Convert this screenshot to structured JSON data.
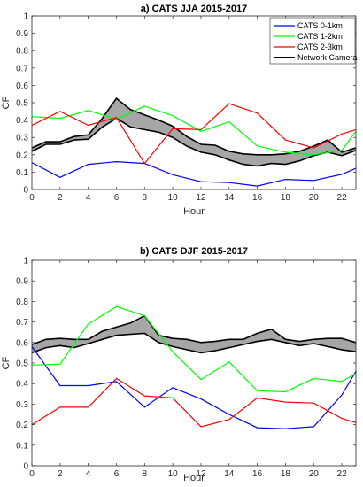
{
  "chart_data": [
    {
      "type": "line",
      "title": "a) CATS JJA 2015-2017",
      "xlabel": "Hour",
      "ylabel": "CF",
      "xlim": [
        0,
        23
      ],
      "ylim": [
        0,
        1
      ],
      "xticks": [
        0,
        2,
        4,
        6,
        8,
        10,
        12,
        14,
        16,
        18,
        20,
        22
      ],
      "yticks": [
        0,
        0.1,
        0.2,
        0.3,
        0.4,
        0.5,
        0.6,
        0.7,
        0.8,
        0.9,
        1
      ],
      "xtick_labels": [
        "0",
        "2",
        "4",
        "6",
        "8",
        "10",
        "12",
        "14",
        "16",
        "18",
        "20",
        "22"
      ],
      "ytick_labels": [
        "0",
        "0.1",
        "0.2",
        "0.3",
        "0.4",
        "0.5",
        "0.6",
        "0.7",
        "0.8",
        "0.9",
        "1"
      ],
      "legend": "top-right",
      "x": [
        0,
        1,
        2,
        3,
        4,
        5,
        6,
        7,
        8,
        9,
        10,
        11,
        12,
        13,
        14,
        15,
        16,
        17,
        18,
        19,
        20,
        21,
        22,
        23
      ],
      "series": [
        {
          "name": "CATS 0-1km",
          "color": "#0000ff",
          "x": [
            0,
            2,
            4,
            6,
            8,
            10,
            12,
            14,
            16,
            18,
            20,
            22,
            23
          ],
          "values": [
            0.155,
            0.07,
            0.145,
            0.16,
            0.15,
            0.085,
            0.045,
            0.04,
            0.02,
            0.058,
            0.052,
            0.087,
            0.122
          ]
        },
        {
          "name": "CATS 1-2km",
          "color": "#00ff00",
          "x": [
            0,
            2,
            4,
            6,
            8,
            10,
            12,
            14,
            16,
            18,
            20,
            22,
            23
          ],
          "values": [
            0.42,
            0.41,
            0.455,
            0.405,
            0.48,
            0.425,
            0.335,
            0.39,
            0.25,
            0.215,
            0.2,
            0.225,
            0.335
          ]
        },
        {
          "name": "CATS 2-3km",
          "color": "#ff0000",
          "x": [
            0,
            2,
            4,
            6,
            8,
            10,
            12,
            14,
            16,
            18,
            20,
            22,
            23
          ],
          "values": [
            0.37,
            0.45,
            0.37,
            0.415,
            0.15,
            0.35,
            0.345,
            0.495,
            0.44,
            0.285,
            0.24,
            0.32,
            0.345
          ]
        }
      ],
      "band": {
        "name": "Network Camera",
        "color": "#000000",
        "fill": "#a6a6a6",
        "upper": [
          0.24,
          0.275,
          0.275,
          0.305,
          0.315,
          0.41,
          0.525,
          0.46,
          0.43,
          0.4,
          0.365,
          0.305,
          0.26,
          0.255,
          0.22,
          0.205,
          0.2,
          0.2,
          0.205,
          0.22,
          0.25,
          0.285,
          0.215,
          0.24
        ],
        "lower": [
          0.22,
          0.26,
          0.26,
          0.285,
          0.29,
          0.36,
          0.41,
          0.36,
          0.345,
          0.33,
          0.3,
          0.25,
          0.215,
          0.2,
          0.17,
          0.145,
          0.135,
          0.15,
          0.145,
          0.165,
          0.195,
          0.215,
          0.195,
          0.225
        ]
      }
    },
    {
      "type": "line",
      "title": "b) CATS DJF 2015-2017",
      "xlabel": "Hour",
      "ylabel": "CF",
      "xlim": [
        0,
        23
      ],
      "ylim": [
        0,
        1
      ],
      "xticks": [
        0,
        2,
        4,
        6,
        8,
        10,
        12,
        14,
        16,
        18,
        20,
        22
      ],
      "yticks": [
        0,
        0.1,
        0.2,
        0.3,
        0.4,
        0.5,
        0.6,
        0.7,
        0.8,
        0.9,
        1
      ],
      "xtick_labels": [
        "0",
        "2",
        "4",
        "6",
        "8",
        "10",
        "12",
        "14",
        "16",
        "18",
        "20",
        "22"
      ],
      "ytick_labels": [
        "0",
        "0.1",
        "0.2",
        "0.3",
        "0.4",
        "0.5",
        "0.6",
        "0.7",
        "0.8",
        "0.9",
        "1"
      ],
      "x": [
        0,
        1,
        2,
        3,
        4,
        5,
        6,
        7,
        8,
        9,
        10,
        11,
        12,
        13,
        14,
        15,
        16,
        17,
        18,
        19,
        20,
        21,
        22,
        23
      ],
      "series": [
        {
          "name": "CATS 0-1km",
          "color": "#0000ff",
          "x": [
            0,
            2,
            4,
            6,
            8,
            10,
            12,
            14,
            16,
            18,
            20,
            22,
            23
          ],
          "values": [
            0.58,
            0.39,
            0.39,
            0.41,
            0.285,
            0.38,
            0.325,
            0.25,
            0.185,
            0.18,
            0.19,
            0.345,
            0.46
          ]
        },
        {
          "name": "CATS 1-2km",
          "color": "#00ff00",
          "x": [
            0,
            2,
            4,
            6,
            8,
            10,
            12,
            14,
            16,
            18,
            20,
            22,
            23
          ],
          "values": [
            0.49,
            0.495,
            0.69,
            0.775,
            0.73,
            0.555,
            0.42,
            0.505,
            0.365,
            0.36,
            0.425,
            0.41,
            0.45
          ]
        },
        {
          "name": "CATS 2-3km",
          "color": "#ff0000",
          "x": [
            0,
            2,
            4,
            6,
            8,
            10,
            12,
            14,
            16,
            18,
            20,
            22,
            23
          ],
          "values": [
            0.2,
            0.285,
            0.285,
            0.425,
            0.34,
            0.33,
            0.19,
            0.225,
            0.33,
            0.31,
            0.305,
            0.23,
            0.21
          ]
        }
      ],
      "band": {
        "name": "Network Camera",
        "color": "#000000",
        "fill": "#a6a6a6",
        "upper": [
          0.59,
          0.615,
          0.62,
          0.615,
          0.615,
          0.655,
          0.675,
          0.695,
          0.73,
          0.635,
          0.62,
          0.615,
          0.6,
          0.605,
          0.615,
          0.615,
          0.645,
          0.665,
          0.615,
          0.605,
          0.615,
          0.62,
          0.62,
          0.6
        ],
        "lower": [
          0.55,
          0.575,
          0.585,
          0.575,
          0.595,
          0.615,
          0.635,
          0.64,
          0.645,
          0.6,
          0.58,
          0.565,
          0.55,
          0.56,
          0.575,
          0.59,
          0.605,
          0.615,
          0.6,
          0.585,
          0.595,
          0.58,
          0.565,
          0.555
        ]
      }
    }
  ]
}
